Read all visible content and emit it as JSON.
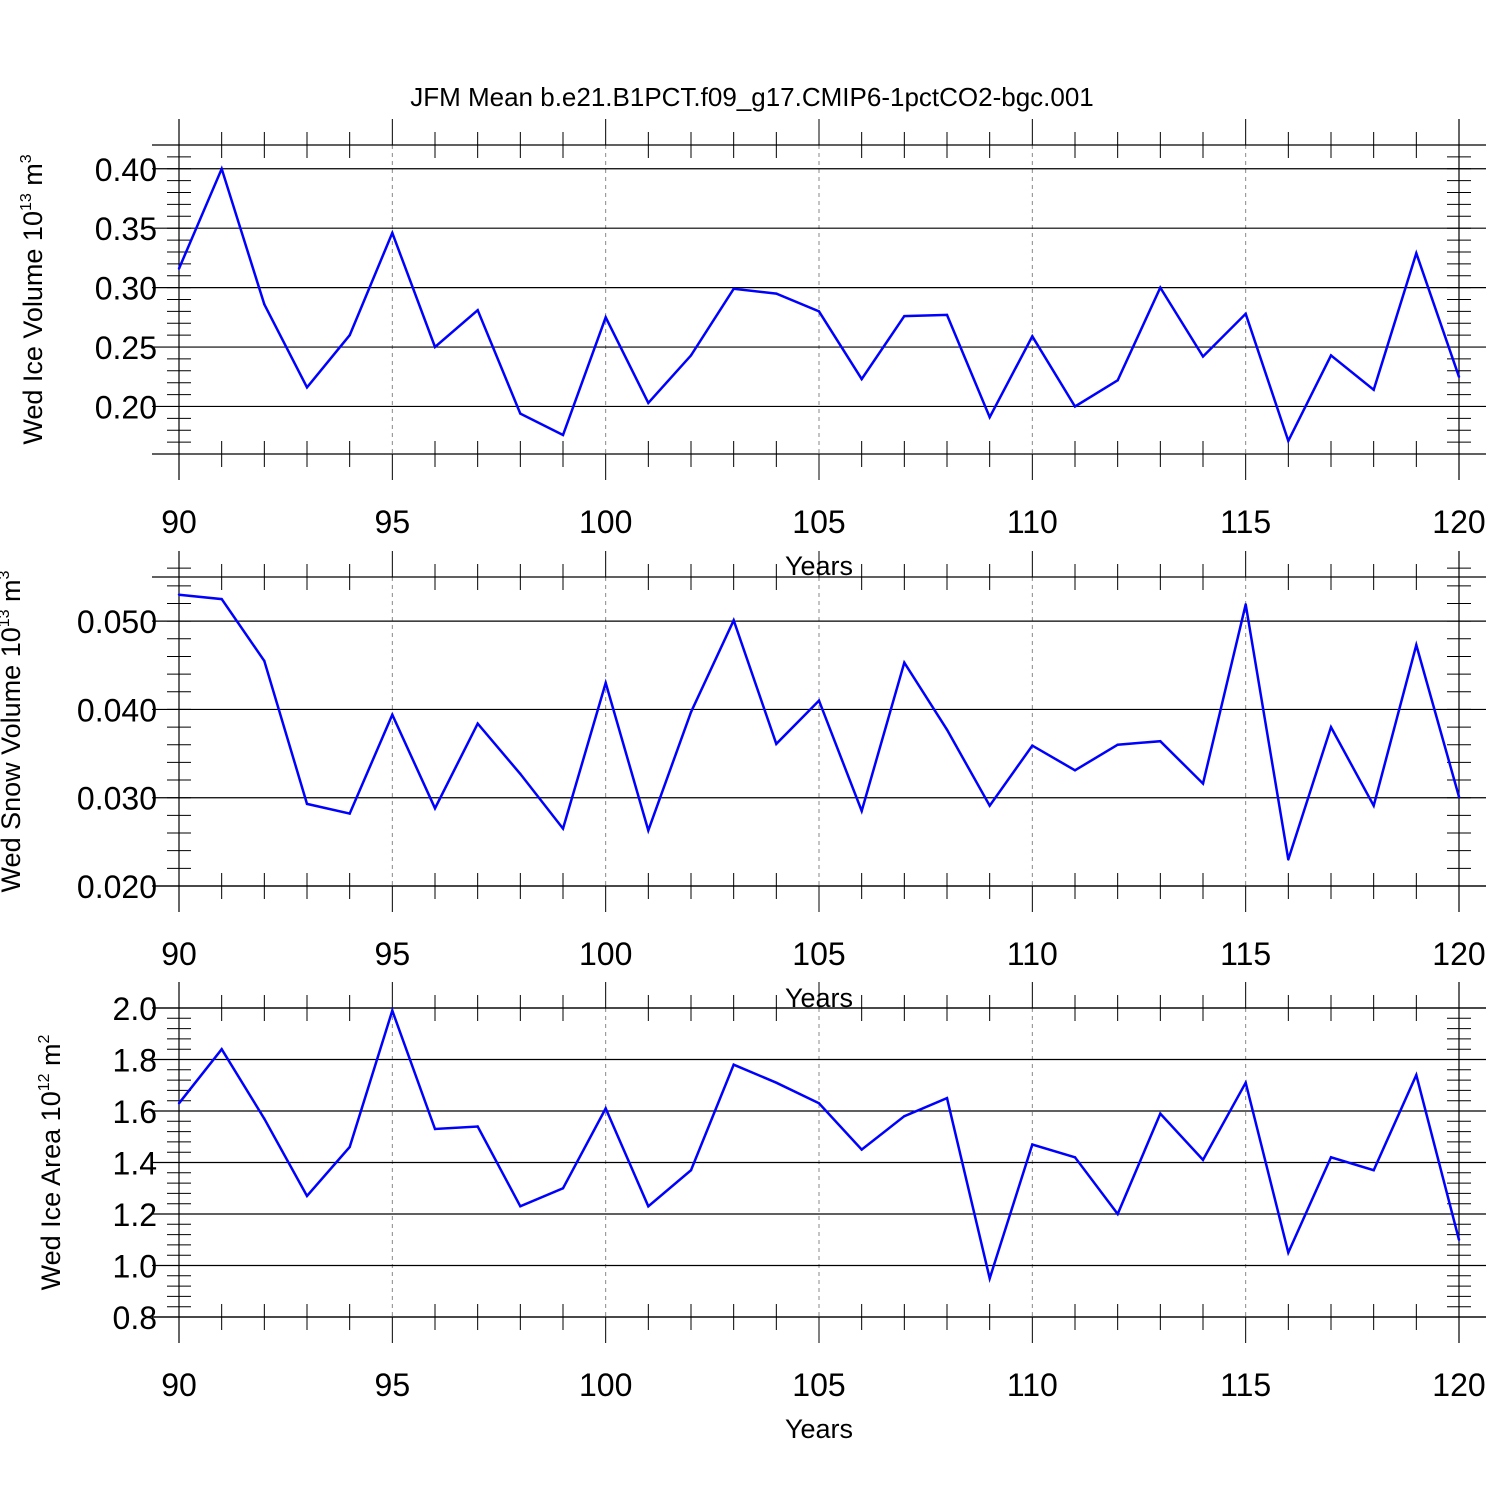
{
  "figure_title": "JFM Mean b.e21.B1PCT.f09_g17.CMIP6-1pctCO2-bgc.001",
  "colors": {
    "line": "#0000ff",
    "axis": "#000000",
    "grid": "#888888",
    "background": "#ffffff"
  },
  "chart_data": [
    {
      "type": "line",
      "title": "",
      "xlabel": "Years",
      "ylabel_parts": {
        "main": "Wed Ice Volume 10",
        "exp": "13",
        "unit": " m",
        "unit_exp": "3"
      },
      "xlim": [
        90,
        120
      ],
      "ylim": [
        0.16,
        0.42
      ],
      "xticks": [
        90,
        95,
        100,
        105,
        110,
        115,
        120
      ],
      "xtick_labels": [
        "90",
        "95",
        "100",
        "105",
        "110",
        "115",
        "120"
      ],
      "yticks": [
        0.2,
        0.25,
        0.3,
        0.35,
        0.4
      ],
      "ytick_labels": [
        "0.20",
        "0.25",
        "0.30",
        "0.35",
        "0.40"
      ],
      "minor_ystep": 0.01,
      "grid": "vertical dashed at major x ticks",
      "x": [
        90,
        91,
        92,
        93,
        94,
        95,
        96,
        97,
        98,
        99,
        100,
        101,
        102,
        103,
        104,
        105,
        106,
        107,
        108,
        109,
        110,
        111,
        112,
        113,
        114,
        115,
        116,
        117,
        118,
        119,
        120
      ],
      "series": [
        {
          "name": "Wed Ice Volume",
          "values": [
            0.316,
            0.4,
            0.286,
            0.216,
            0.26,
            0.346,
            0.25,
            0.281,
            0.194,
            0.176,
            0.275,
            0.203,
            0.243,
            0.299,
            0.295,
            0.28,
            0.223,
            0.276,
            0.277,
            0.191,
            0.259,
            0.2,
            0.222,
            0.3,
            0.242,
            0.278,
            0.171,
            0.243,
            0.214,
            0.329,
            0.225
          ]
        }
      ]
    },
    {
      "type": "line",
      "title": "",
      "xlabel": "Years",
      "ylabel_parts": {
        "main": "Wed Snow Volume 10",
        "exp": "13",
        "unit": " m",
        "unit_exp": "3"
      },
      "xlim": [
        90,
        120
      ],
      "ylim": [
        0.02,
        0.055
      ],
      "xticks": [
        90,
        95,
        100,
        105,
        110,
        115,
        120
      ],
      "xtick_labels": [
        "90",
        "95",
        "100",
        "105",
        "110",
        "115",
        "120"
      ],
      "yticks": [
        0.02,
        0.03,
        0.04,
        0.05
      ],
      "ytick_labels": [
        "0.020",
        "0.030",
        "0.040",
        "0.050"
      ],
      "minor_ystep": 0.002,
      "grid": "vertical dashed at major x ticks",
      "x": [
        90,
        91,
        92,
        93,
        94,
        95,
        96,
        97,
        98,
        99,
        100,
        101,
        102,
        103,
        104,
        105,
        106,
        107,
        108,
        109,
        110,
        111,
        112,
        113,
        114,
        115,
        116,
        117,
        118,
        119,
        120
      ],
      "series": [
        {
          "name": "Wed Snow Volume",
          "values": [
            0.053,
            0.0525,
            0.0455,
            0.0293,
            0.0282,
            0.0394,
            0.0288,
            0.0384,
            0.0327,
            0.0265,
            0.043,
            0.0263,
            0.0397,
            0.0501,
            0.0361,
            0.041,
            0.0285,
            0.0453,
            0.0377,
            0.0291,
            0.0359,
            0.0331,
            0.036,
            0.0364,
            0.0316,
            0.0519,
            0.023,
            0.038,
            0.0291,
            0.0473,
            0.0301
          ]
        }
      ]
    },
    {
      "type": "line",
      "title": "",
      "xlabel": "Years",
      "ylabel_parts": {
        "main": "Wed Ice Area 10",
        "exp": "12",
        "unit": " m",
        "unit_exp": "2"
      },
      "xlim": [
        90,
        120
      ],
      "ylim": [
        0.8,
        2.0
      ],
      "xticks": [
        90,
        95,
        100,
        105,
        110,
        115,
        120
      ],
      "xtick_labels": [
        "90",
        "95",
        "100",
        "105",
        "110",
        "115",
        "120"
      ],
      "yticks": [
        0.8,
        1.0,
        1.2,
        1.4,
        1.6,
        1.8,
        2.0
      ],
      "ytick_labels": [
        "0.8",
        "1.0",
        "1.2",
        "1.4",
        "1.6",
        "1.8",
        "2.0"
      ],
      "minor_ystep": 0.04,
      "grid": "vertical dashed at major x ticks",
      "x": [
        90,
        91,
        92,
        93,
        94,
        95,
        96,
        97,
        98,
        99,
        100,
        101,
        102,
        103,
        104,
        105,
        106,
        107,
        108,
        109,
        110,
        111,
        112,
        113,
        114,
        115,
        116,
        117,
        118,
        119,
        120
      ],
      "series": [
        {
          "name": "Wed Ice Area",
          "values": [
            1.63,
            1.84,
            1.57,
            1.27,
            1.46,
            1.99,
            1.53,
            1.54,
            1.23,
            1.3,
            1.61,
            1.23,
            1.37,
            1.78,
            1.71,
            1.63,
            1.45,
            1.58,
            1.65,
            0.95,
            1.47,
            1.42,
            1.2,
            1.59,
            1.41,
            1.71,
            1.05,
            1.42,
            1.37,
            1.74,
            1.1
          ]
        }
      ]
    }
  ]
}
